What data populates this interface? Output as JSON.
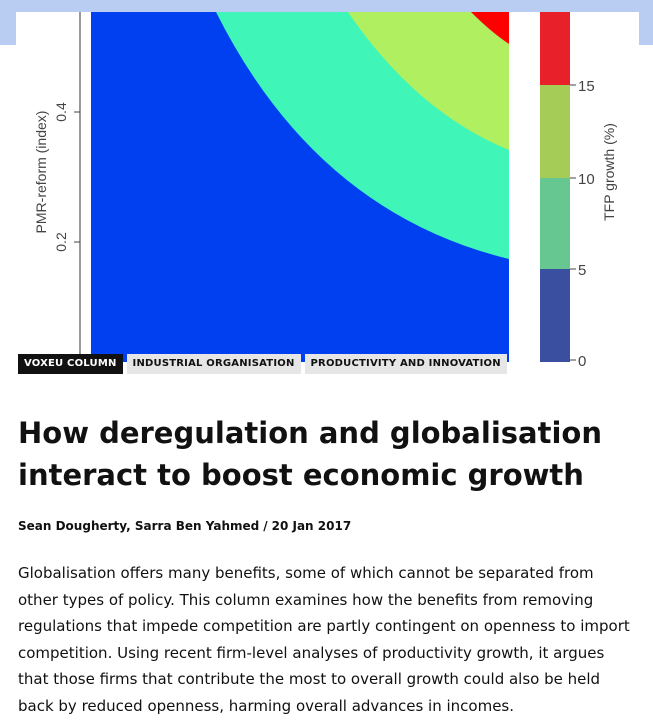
{
  "chart_data": {
    "type": "heatmap",
    "title": "",
    "ylabel": "PMR-reform (index)",
    "yticks": [
      "0.2",
      "0.4"
    ],
    "colorbar_label": "TFP growth (%)",
    "colorbar_ticks": [
      "0",
      "5",
      "10",
      "15"
    ],
    "bins": [
      {
        "range": [
          0,
          5
        ],
        "color": "#0040f0",
        "legend_color": "#3a4fa0"
      },
      {
        "range": [
          5,
          10
        ],
        "color": "#3ff5b8",
        "legend_color": "#66c890"
      },
      {
        "range": [
          10,
          15
        ],
        "color": "#b0f060",
        "legend_color": "#a6cc58"
      },
      {
        "range": [
          15,
          20
        ],
        "color": "#ff0000",
        "legend_color": "#e8202a"
      }
    ]
  },
  "tags": [
    "VOXEU COLUMN",
    "INDUSTRIAL ORGANISATION",
    "PRODUCTIVITY AND INNOVATION"
  ],
  "article": {
    "title": "How deregulation and globalisation interact to boost economic growth",
    "authors": "Sean Dougherty, Sarra Ben Yahmed",
    "separator": "/",
    "date": "20 Jan 2017",
    "summary": "Globalisation offers many benefits, some of which cannot be separated from other types of policy. This column examines how the benefits from removing regulations that impede competition are partly contingent on openness to import competition. Using recent firm-level analyses of productivity growth, it argues that those firms that contribute the most to overall growth could also be held back by reduced openness, harming overall advances in incomes."
  }
}
